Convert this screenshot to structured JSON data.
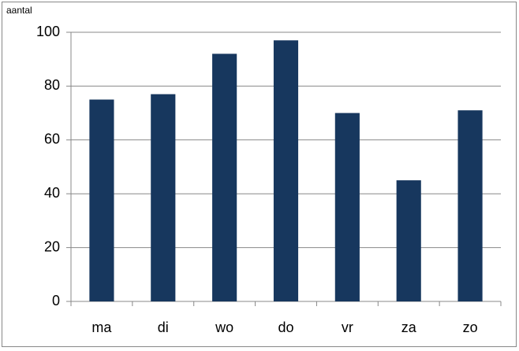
{
  "chart_data": {
    "type": "bar",
    "y_label": "aantal",
    "categories": [
      "ma",
      "di",
      "wo",
      "do",
      "vr",
      "za",
      "zo"
    ],
    "values": [
      75,
      77,
      92,
      97,
      70,
      45,
      71
    ],
    "color": "#17375e",
    "ylim": [
      0,
      100
    ],
    "yticks": [
      0,
      20,
      40,
      60,
      80,
      100
    ],
    "grid": true
  }
}
